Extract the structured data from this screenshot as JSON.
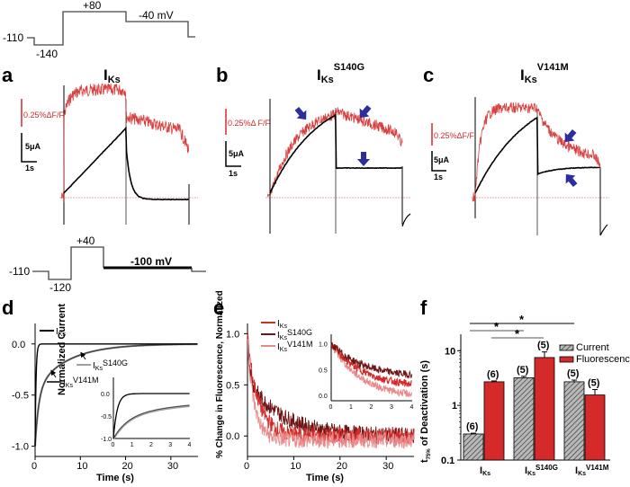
{
  "panels": {
    "a": {
      "letter": "a",
      "title_main": "I",
      "title_sub": "Ks",
      "title_sup": ""
    },
    "b": {
      "letter": "b",
      "title_main": "I",
      "title_sub": "Ks",
      "title_sup": "S140G"
    },
    "c": {
      "letter": "c",
      "title_main": "I",
      "title_sub": "Ks",
      "title_sup": "V141M"
    },
    "d": {
      "letter": "d"
    },
    "e": {
      "letter": "e"
    },
    "f": {
      "letter": "f"
    }
  },
  "protocol_top": {
    "labels": [
      "-110",
      "-140",
      "+80",
      "-40 mV"
    ]
  },
  "protocol_bottom": {
    "labels": [
      "-110",
      "-120",
      "+40",
      "-100 mV"
    ]
  },
  "scalebars": {
    "fluor": "0.25%ΔF/F",
    "fluor_b": "0.25%Δ F/F",
    "current": "5μA",
    "time": "1s"
  },
  "colors": {
    "red": "#d42a2a",
    "dark_red": "#6e1616",
    "light_red": "#e88a8a",
    "black": "#000000",
    "gray": "#a0a0a0",
    "arrow_blue": "#2b2e9c",
    "bar_red": "#d42a2a"
  },
  "chart_data": [
    {
      "id": "d",
      "type": "line",
      "title": "",
      "xlabel": "Time (s)",
      "ylabel": "Normalized Current",
      "xlim": [
        0,
        36
      ],
      "ylim": [
        -1.1,
        0.2
      ],
      "xticks": [
        "0",
        "10",
        "20",
        "30"
      ],
      "yticks": [
        "0.0",
        "-0.5",
        "-1.0"
      ],
      "series": [
        {
          "name": "IKs",
          "label_main": "I",
          "label_sub": "Ks",
          "label_sup": "",
          "tau_s": 0.2,
          "color": "#000000"
        },
        {
          "name": "IKsS140G",
          "label_main": "I",
          "label_sub": "Ks",
          "label_sup": "S140G",
          "tau_s": 3.5,
          "color": "#a0a0a0"
        },
        {
          "name": "IKsV141M",
          "label_main": "I",
          "label_sub": "Ks",
          "label_sup": "V141M",
          "tau_s": 3.2,
          "color": "#404040"
        }
      ],
      "inset": {
        "xlim": [
          0,
          4
        ],
        "ylim": [
          -1.0,
          0.1
        ],
        "xticks": [
          "0",
          "1",
          "2",
          "3",
          "4"
        ],
        "yticks": [
          "0.0",
          "-0.5",
          "-1.0"
        ]
      }
    },
    {
      "id": "e",
      "type": "line",
      "title": "",
      "xlabel": "Time (s)",
      "ylabel": "% Change in Fluorescence, Normalized",
      "xlim": [
        0,
        36
      ],
      "ylim": [
        -0.2,
        1.1
      ],
      "xticks": [
        "0",
        "10",
        "20",
        "30"
      ],
      "yticks": [
        "1.0",
        "0.5",
        "0.0"
      ],
      "series": [
        {
          "name": "IKs",
          "label_main": "I",
          "label_sub": "Ks",
          "label_sup": "",
          "tau_s": 2.5,
          "color": "#d42a2a"
        },
        {
          "name": "IKsS140G",
          "label_main": "I",
          "label_sub": "Ks",
          "label_sup": "S140G",
          "tau_s": 7.5,
          "color": "#6e1616"
        },
        {
          "name": "IKsV141M",
          "label_main": "I",
          "label_sub": "Ks",
          "label_sup": "V141M",
          "tau_s": 1.6,
          "color": "#e88a8a"
        }
      ],
      "inset": {
        "xlim": [
          0,
          4
        ],
        "ylim": [
          -0.1,
          1.15
        ],
        "xticks": [
          "0",
          "1",
          "2",
          "3",
          "4"
        ],
        "yticks": [
          "1.0",
          "0.5",
          "0.0"
        ]
      }
    },
    {
      "id": "f",
      "type": "bar",
      "title": "",
      "ylabel": "t75% of Deactivation (s)",
      "ylabel_main": "t",
      "ylabel_sub": "75%",
      "ylabel_rest": " of Deactivation (s)",
      "yscale": "log",
      "ylim": [
        0.1,
        20
      ],
      "yticks": [
        "10",
        "1",
        "0.1"
      ],
      "categories": [
        {
          "main": "I",
          "sub": "Ks",
          "sup": ""
        },
        {
          "main": "I",
          "sub": "Ks",
          "sup": "S140G"
        },
        {
          "main": "I",
          "sub": "Ks",
          "sup": "V141M"
        }
      ],
      "series": [
        {
          "name": "Current",
          "values": [
            0.3,
            3.2,
            2.7
          ],
          "errors": [
            0.01,
            0.2,
            0.2
          ],
          "n": [
            "(6)",
            "(5)",
            "(5)"
          ]
        },
        {
          "name": "Fluorescence",
          "values": [
            2.7,
            7.5,
            1.55
          ],
          "errors": [
            0.1,
            2.0,
            0.4
          ],
          "n": [
            "(6)",
            "(5)",
            "(5)"
          ]
        }
      ],
      "significance": [
        {
          "from": "IKs current",
          "to": "IKsV141M current",
          "label": "*"
        },
        {
          "from": "IKs current",
          "to": "IKsS140G current",
          "label": "*"
        },
        {
          "from": "IKs fluorescence",
          "to": "IKsS140G fluorescence",
          "label": "*"
        }
      ],
      "legend_position": "top-right"
    }
  ]
}
